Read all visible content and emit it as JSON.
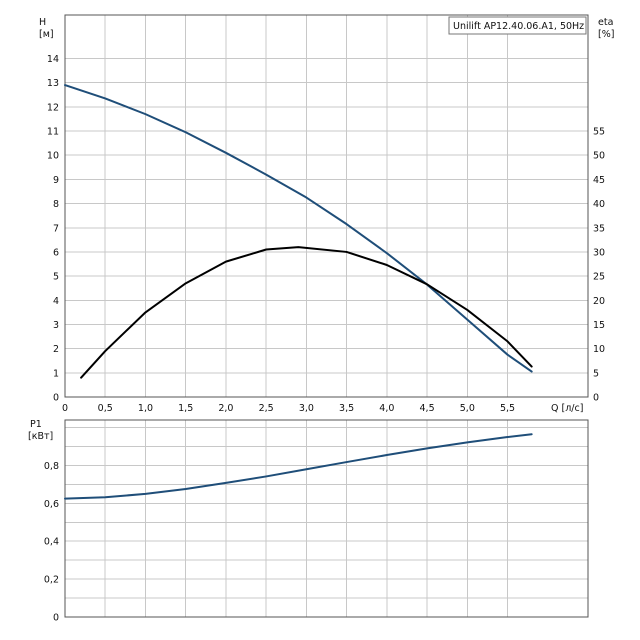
{
  "chart_data": [
    {
      "type": "line",
      "legend": "Unilift AP12.40.06.A1, 50Hz",
      "legend_placement": "top-right",
      "grid": true,
      "xlabel": "Q [л/с]",
      "ylabel_left": {
        "line1": "H",
        "line2": "[м]"
      },
      "ylabel_right": {
        "line1": "eta",
        "line2": "[%]"
      },
      "xlim": [
        0,
        6.5
      ],
      "ylim_left": [
        0,
        15.8
      ],
      "ylim_right": [
        0,
        79
      ],
      "x_ticks": [
        0,
        0.5,
        1.0,
        1.5,
        2.0,
        2.5,
        3.0,
        3.5,
        4.0,
        4.5,
        5.0,
        5.5
      ],
      "x_tick_labels": [
        "0",
        "0,5",
        "1,0",
        "1,5",
        "2,0",
        "2,5",
        "3,0",
        "3,5",
        "4,0",
        "4,5",
        "5,0",
        "5,5"
      ],
      "y_left_ticks": [
        0,
        1,
        2,
        3,
        4,
        5,
        6,
        7,
        8,
        9,
        10,
        11,
        12,
        13,
        14
      ],
      "y_left_tick_labels": [
        "0",
        "1",
        "2",
        "3",
        "4",
        "5",
        "6",
        "7",
        "8",
        "9",
        "10",
        "11",
        "12",
        "13",
        "14"
      ],
      "y_right_ticks": [
        0,
        5,
        10,
        15,
        20,
        25,
        30,
        35,
        40,
        45,
        50,
        55
      ],
      "y_right_tick_labels": [
        "0",
        "5",
        "10",
        "15",
        "20",
        "25",
        "30",
        "35",
        "40",
        "45",
        "50",
        "55"
      ],
      "series": [
        {
          "axis": "left",
          "color": "#1f4e79",
          "x": [
            0,
            0.5,
            1.0,
            1.5,
            2.0,
            2.5,
            3.0,
            3.5,
            4.0,
            4.5,
            5.0,
            5.5,
            5.8
          ],
          "y": [
            12.9,
            12.35,
            11.7,
            10.95,
            10.1,
            9.2,
            8.25,
            7.15,
            5.95,
            4.65,
            3.2,
            1.75,
            1.05
          ]
        },
        {
          "axis": "right",
          "color": "#000000",
          "x": [
            0.2,
            0.5,
            1.0,
            1.5,
            2.0,
            2.5,
            2.9,
            3.5,
            4.0,
            4.5,
            5.0,
            5.5,
            5.8
          ],
          "y": [
            4,
            9.5,
            17.5,
            23.5,
            28,
            30.5,
            31,
            30,
            27.3,
            23.3,
            18,
            11.5,
            6.3
          ]
        }
      ]
    },
    {
      "type": "line",
      "grid": true,
      "ylabel_left": {
        "line1": "P1",
        "line2": "[кВт]"
      },
      "xlim": [
        0,
        6.5
      ],
      "ylim": [
        0,
        1.04
      ],
      "x_ticks": [
        0,
        0.5,
        1.0,
        1.5,
        2.0,
        2.5,
        3.0,
        3.5,
        4.0,
        4.5,
        5.0,
        5.5
      ],
      "y_ticks": [
        0,
        0.2,
        0.4,
        0.6,
        0.8
      ],
      "y_tick_labels": [
        "0",
        "0,2",
        "0,4",
        "0,6",
        "0,8"
      ],
      "series": [
        {
          "axis": "left",
          "color": "#1f4e79",
          "x": [
            0,
            0.5,
            1.0,
            1.5,
            2.0,
            2.5,
            3.0,
            3.5,
            4.0,
            4.5,
            5.0,
            5.5,
            5.8
          ],
          "y": [
            0.625,
            0.632,
            0.65,
            0.676,
            0.708,
            0.742,
            0.78,
            0.818,
            0.855,
            0.89,
            0.922,
            0.95,
            0.965
          ]
        }
      ]
    }
  ]
}
